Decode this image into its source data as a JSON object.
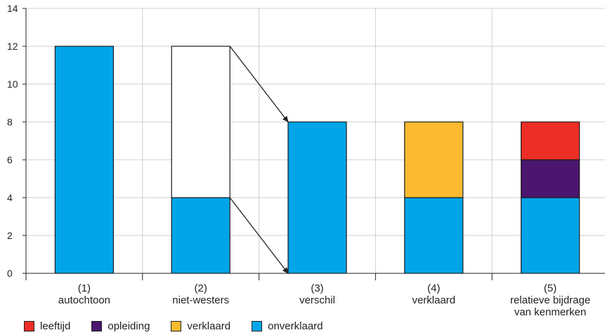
{
  "chart_data": {
    "type": "bar",
    "stacked": true,
    "ylim": [
      0,
      14
    ],
    "yticks": [
      0,
      2,
      4,
      6,
      8,
      10,
      12,
      14
    ],
    "grid": true,
    "legend_position": "bottom-left",
    "categories": [
      [
        "(1)",
        "autochtoon"
      ],
      [
        "(2)",
        "niet-westers"
      ],
      [
        "(3)",
        "verschil"
      ],
      [
        "(4)",
        "verklaard"
      ],
      [
        "(5)",
        "relatieve bijdrage",
        "van kenmerken"
      ]
    ],
    "series": [
      {
        "name": "onverklaard",
        "color": "#00a5e8",
        "values": [
          12,
          4,
          8,
          4,
          4
        ]
      },
      {
        "name": "outline",
        "color": "#ffffff",
        "values": [
          0,
          8,
          0,
          0,
          0
        ]
      },
      {
        "name": "verklaard",
        "color": "#fbba30",
        "values": [
          0,
          0,
          0,
          4,
          0
        ]
      },
      {
        "name": "opleiding",
        "color": "#4b166f",
        "values": [
          0,
          0,
          0,
          0,
          2
        ]
      },
      {
        "name": "leeftijd",
        "color": "#ec2e26",
        "values": [
          0,
          0,
          0,
          0,
          2
        ]
      }
    ],
    "legend": [
      {
        "name": "leeftijd",
        "color": "#ec2e26"
      },
      {
        "name": "opleiding",
        "color": "#4b166f"
      },
      {
        "name": "verklaard",
        "color": "#fbba30"
      },
      {
        "name": "onverklaard",
        "color": "#00a5e8"
      }
    ],
    "annotations": [
      {
        "type": "arrow",
        "from": {
          "category": 1,
          "y": 12
        },
        "to": {
          "category": 2,
          "y": 8
        }
      },
      {
        "type": "arrow",
        "from": {
          "category": 1,
          "y": 4
        },
        "to": {
          "category": 2,
          "y": 0
        }
      }
    ]
  }
}
